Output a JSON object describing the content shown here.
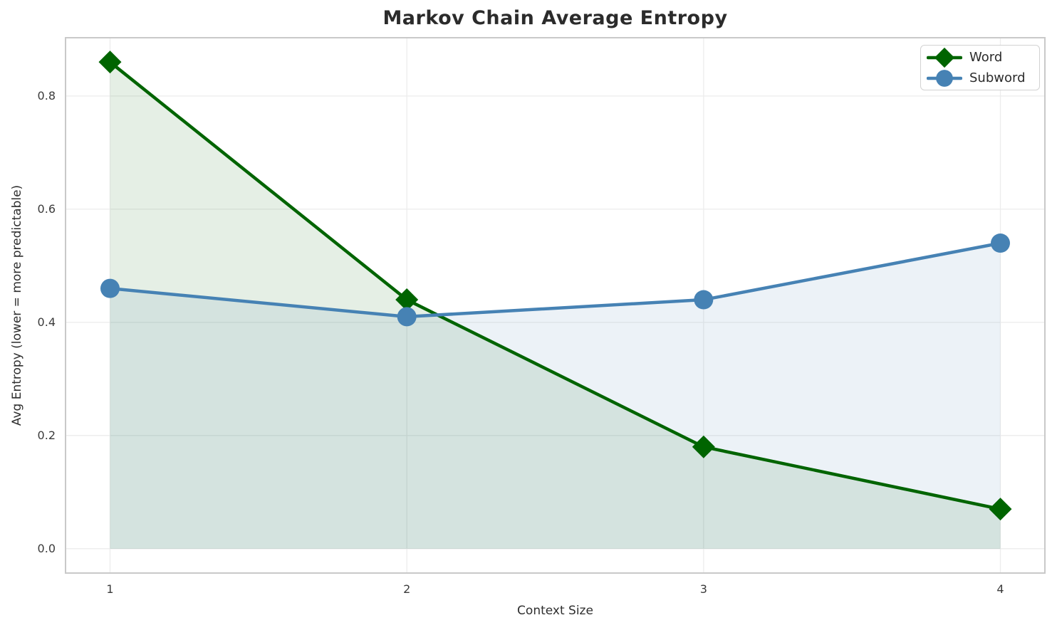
{
  "chart_data": {
    "type": "line",
    "title": "Markov Chain Average Entropy",
    "xlabel": "Context Size",
    "ylabel": "Avg Entropy (lower = more predictable)",
    "x": [
      1,
      2,
      3,
      4
    ],
    "series": [
      {
        "name": "Word",
        "color": "#006400",
        "marker": "diamond",
        "fill_alpha": 0.1,
        "values": [
          0.86,
          0.44,
          0.18,
          0.07
        ]
      },
      {
        "name": "Subword",
        "color": "#4682b4",
        "marker": "circle",
        "fill_alpha": 0.1,
        "values": [
          0.46,
          0.41,
          0.44,
          0.54
        ]
      }
    ],
    "fill_to_baseline": 0,
    "xticks": [
      1,
      2,
      3,
      4
    ],
    "xtick_labels": [
      "1",
      "2",
      "3",
      "4"
    ],
    "yticks": [
      0.0,
      0.2,
      0.4,
      0.6,
      0.8
    ],
    "ytick_labels": [
      "0.0",
      "0.2",
      "0.4",
      "0.6",
      "0.8"
    ],
    "xlim": [
      0.85,
      4.15
    ],
    "ylim": [
      -0.043,
      0.903
    ],
    "grid": true,
    "legend_position": "upper right"
  },
  "style": {
    "background": "#ffffff",
    "grid_color": "#ececec",
    "spine_color": "#c9c9c9",
    "title_color": "#2b2b2b",
    "tick_color": "#3b3b3b",
    "word_color": "#006400",
    "subword_color": "#4682b4"
  }
}
